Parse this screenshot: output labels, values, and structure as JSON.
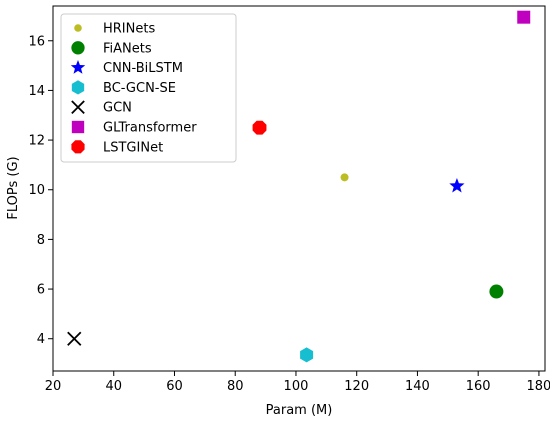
{
  "chart_data": {
    "type": "scatter",
    "xlabel": "Param (M)",
    "ylabel": "FLOPs (G)",
    "xlim": [
      20,
      182
    ],
    "ylim": [
      2.7,
      17.4
    ],
    "xticks": [
      20,
      40,
      60,
      80,
      100,
      120,
      140,
      160,
      180
    ],
    "yticks": [
      4,
      6,
      8,
      10,
      12,
      14,
      16
    ],
    "grid": false,
    "legend_position": "top-left",
    "series": [
      {
        "name": "HRINets",
        "marker": "circle-small",
        "color": "#bcbd22",
        "x": 116,
        "y": 10.5
      },
      {
        "name": "FiANets",
        "marker": "circle",
        "color": "#008000",
        "x": 166,
        "y": 5.9
      },
      {
        "name": "CNN-BiLSTM",
        "marker": "star",
        "color": "#0000ff",
        "x": 153,
        "y": 10.15
      },
      {
        "name": "BC-GCN-SE",
        "marker": "hexagon",
        "color": "#17becf",
        "x": 103.5,
        "y": 3.35
      },
      {
        "name": "GCN",
        "marker": "x",
        "color": "#000000",
        "x": 27,
        "y": 4.0
      },
      {
        "name": "GLTransformer",
        "marker": "square",
        "color": "#bf00bf",
        "x": 175,
        "y": 16.95
      },
      {
        "name": "LSTGINet",
        "marker": "octagon",
        "color": "#ff0000",
        "x": 88,
        "y": 12.5
      }
    ]
  }
}
